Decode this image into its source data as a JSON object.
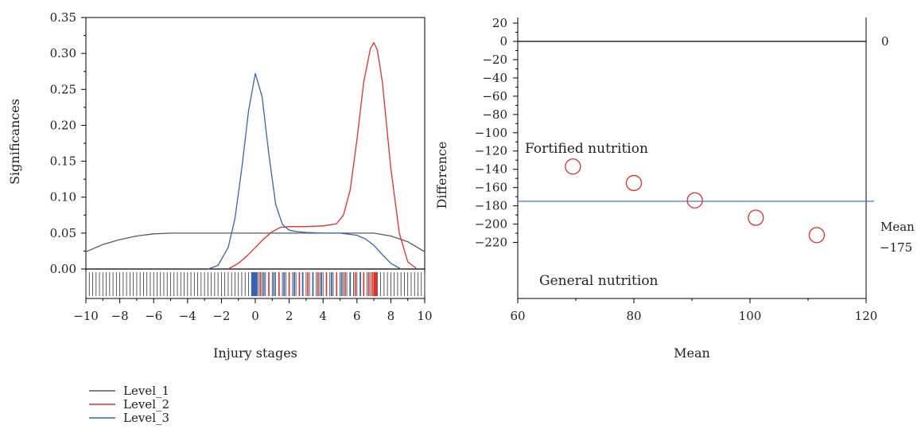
{
  "colors": {
    "level_1": "#5a5a5a",
    "level_2": "#e0302a",
    "level_3": "#3b63b0",
    "axis": "#000000",
    "marker": "#e0302a",
    "mean_line": "#4a78c9"
  },
  "chart_data": [
    {
      "type": "line",
      "title": "",
      "xlabel": "Injury stages",
      "ylabel": "Significances",
      "xlim": [
        -10,
        10
      ],
      "ylim": [
        -0.04,
        0.35
      ],
      "xticks": [
        -10,
        -8,
        -6,
        -4,
        -2,
        0,
        2,
        4,
        6,
        8,
        10
      ],
      "xtick_labels": [
        "−10",
        "−8",
        "−6",
        "−4",
        "−2",
        "0",
        "2",
        "4",
        "6",
        "8",
        "10"
      ],
      "yticks": [
        0,
        0.05,
        0.1,
        0.15,
        0.2,
        0.25,
        0.3,
        0.35
      ],
      "ytick_labels": [
        "0.00",
        "0.05",
        "0.10",
        "0.15",
        "0.20",
        "0.25",
        "0.30",
        "0.35"
      ],
      "grid": false,
      "legend_position": "bottom-left",
      "series": [
        {
          "name": "Level_1",
          "color": "#5a5a5a",
          "x": [
            -10,
            -9,
            -8,
            -7,
            -6,
            -5,
            -4,
            -3,
            -2,
            -1,
            0,
            1,
            2,
            3,
            4,
            5,
            6,
            7,
            8,
            9,
            10
          ],
          "y": [
            0.024,
            0.034,
            0.041,
            0.046,
            0.049,
            0.05,
            0.05,
            0.05,
            0.05,
            0.05,
            0.05,
            0.05,
            0.05,
            0.05,
            0.05,
            0.05,
            0.05,
            0.05,
            0.046,
            0.038,
            0.024
          ]
        },
        {
          "name": "Level_2",
          "color": "#e0302a",
          "x": [
            -1.6,
            -1,
            -0.5,
            0,
            0.5,
            1,
            1.5,
            2,
            3,
            4,
            4.8,
            5.2,
            5.6,
            6,
            6.4,
            6.8,
            7,
            7.2,
            7.5,
            8,
            8.5,
            9,
            9.5
          ],
          "y": [
            0,
            0.008,
            0.018,
            0.03,
            0.042,
            0.052,
            0.058,
            0.059,
            0.059,
            0.06,
            0.063,
            0.075,
            0.11,
            0.18,
            0.26,
            0.307,
            0.315,
            0.305,
            0.26,
            0.14,
            0.05,
            0.01,
            0.001
          ]
        },
        {
          "name": "Level_3",
          "color": "#3b63b0",
          "x": [
            -2.8,
            -2.2,
            -1.6,
            -1.2,
            -0.8,
            -0.4,
            0,
            0.4,
            0.8,
            1.2,
            1.6,
            2,
            2.5,
            3,
            4,
            5,
            6,
            6.5,
            7,
            7.5,
            8,
            8.6
          ],
          "y": [
            0,
            0.005,
            0.03,
            0.07,
            0.14,
            0.22,
            0.272,
            0.24,
            0.16,
            0.09,
            0.062,
            0.054,
            0.052,
            0.051,
            0.05,
            0.05,
            0.047,
            0.042,
            0.033,
            0.02,
            0.008,
            0
          ]
        }
      ],
      "rug": {
        "gray_x": [
          -10,
          -9.8,
          -9.6,
          -9.4,
          -9.2,
          -9,
          -8.8,
          -8.6,
          -8.4,
          -8.2,
          -8,
          -7.8,
          -7.6,
          -7.4,
          -7.2,
          -7,
          -6.8,
          -6.6,
          -6.4,
          -6.2,
          -6,
          -5.8,
          -5.6,
          -5.4,
          -5.2,
          -5,
          -4.8,
          -4.6,
          -4.4,
          -4.2,
          -4,
          -3.8,
          -3.6,
          -3.4,
          -3.2,
          -3,
          -2.8,
          -2.6,
          -2.4,
          -2.2,
          -2,
          -1.8,
          -1.6,
          -1.4,
          -1.2,
          -1,
          -0.8,
          -0.6,
          -0.4,
          -0.2,
          0,
          0.2,
          0.4,
          0.6,
          0.8,
          1,
          1.2,
          1.4,
          1.6,
          1.8,
          2,
          2.2,
          2.4,
          2.6,
          2.8,
          3,
          3.2,
          3.4,
          3.6,
          3.8,
          4,
          4.2,
          4.4,
          4.6,
          4.8,
          5,
          5.2,
          5.4,
          5.6,
          5.8,
          6,
          6.2,
          6.4,
          6.6,
          6.8,
          7,
          7.2,
          7.4,
          7.6,
          7.8,
          8,
          8.2,
          8.4,
          8.6,
          8.8,
          9,
          9.2,
          9.4,
          9.6,
          9.8,
          10
        ],
        "blue_x": [
          -0.2,
          -0.15,
          -0.1,
          -0.05,
          0,
          0.05,
          0.1,
          0.5,
          1.1,
          1.7,
          2.3,
          2.8,
          3.4,
          3.9,
          4.5,
          5.1,
          5.6,
          6.2
        ],
        "red_x": [
          0.3,
          0.8,
          1.4,
          2,
          2.6,
          3.1,
          3.7,
          4.2,
          4.8,
          5.3,
          5.9,
          6.4,
          6.7,
          6.9,
          7,
          7.05,
          7.1,
          7.15
        ]
      }
    },
    {
      "type": "scatter",
      "title": "",
      "xlabel": "Mean",
      "ylabel": "Difference",
      "xlim": [
        60,
        120
      ],
      "ylim": [
        -225,
        20
      ],
      "xticks": [
        60,
        80,
        100,
        120
      ],
      "xtick_labels": [
        "60",
        "80",
        "100",
        "120"
      ],
      "yticks": [
        20,
        0,
        -20,
        -40,
        -60,
        -80,
        -100,
        -120,
        -140,
        -160,
        -180,
        -200,
        -220
      ],
      "ytick_labels": [
        "20",
        "0",
        "−20",
        "−40",
        "−60",
        "−80",
        "−100",
        "−120",
        "−140",
        "−160",
        "−180",
        "−200",
        "−220"
      ],
      "grid": false,
      "points": [
        {
          "x": 69.5,
          "y": -137
        },
        {
          "x": 80,
          "y": -155
        },
        {
          "x": 90.5,
          "y": -174
        },
        {
          "x": 101,
          "y": -193
        },
        {
          "x": 111.5,
          "y": -212
        }
      ],
      "reference_lines": [
        {
          "y": 0,
          "label": "0"
        },
        {
          "y": -175,
          "label_line1": "Mean",
          "label_line2": "−175"
        }
      ],
      "annotations": [
        "Fortified nutrition",
        "General nutrition"
      ]
    }
  ]
}
